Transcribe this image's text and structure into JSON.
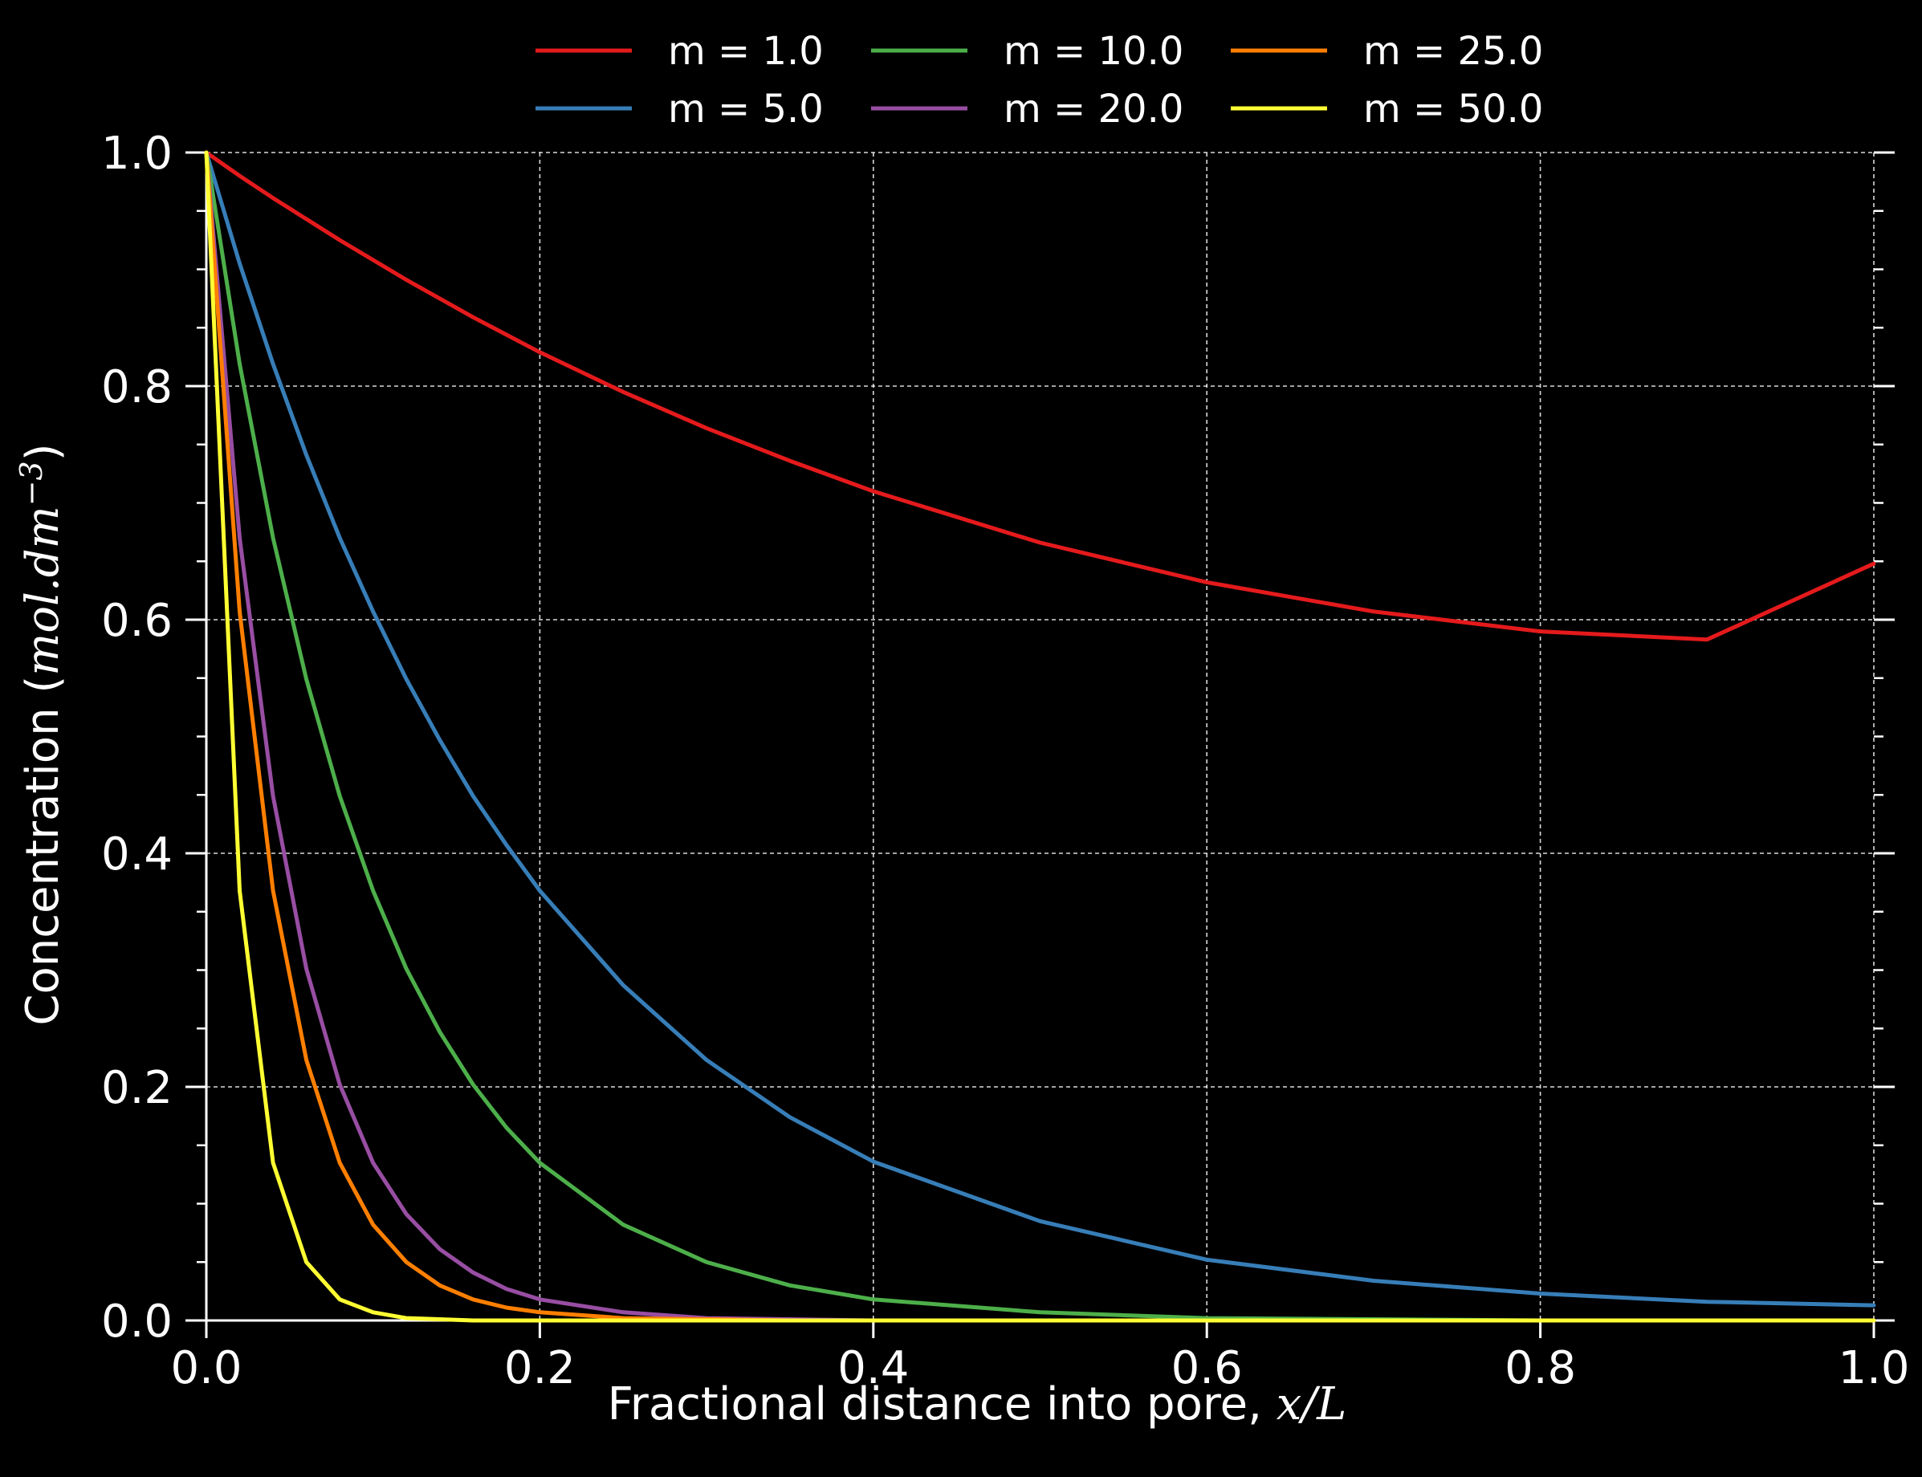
{
  "chart_data": {
    "type": "line",
    "xlabel_prefix": "Fractional distance into pore, ",
    "xlabel_math": "x/L",
    "ylabel_prefix": "Concentration (",
    "ylabel_math": "mol.dm",
    "ylabel_exp": "−3",
    "ylabel_suffix": ")",
    "xlim": [
      0.0,
      1.0
    ],
    "ylim": [
      0.0,
      1.0
    ],
    "xticks": [
      "0.0",
      "0.2",
      "0.4",
      "0.6",
      "0.8",
      "1.0"
    ],
    "yticks": [
      "0.0",
      "0.2",
      "0.4",
      "0.6",
      "0.8",
      "1.0"
    ],
    "grid": true,
    "legend_position": "top",
    "background": "#000000",
    "x": [
      0.0,
      0.02,
      0.04,
      0.06,
      0.08,
      0.1,
      0.12,
      0.14,
      0.16,
      0.18,
      0.2,
      0.25,
      0.3,
      0.35,
      0.4,
      0.5,
      0.6,
      0.7,
      0.8,
      0.9,
      1.0
    ],
    "series": [
      {
        "name": "m = 1.0",
        "color": "#e41a1c",
        "values": [
          1.0,
          0.98,
          0.961,
          0.943,
          0.925,
          0.908,
          0.891,
          0.875,
          0.859,
          0.844,
          0.829,
          0.795,
          0.764,
          0.736,
          0.71,
          0.666,
          0.632,
          0.607,
          0.59,
          0.583,
          0.648
        ]
      },
      {
        "name": "m = 5.0",
        "color": "#377eb8",
        "values": [
          1.0,
          0.905,
          0.819,
          0.741,
          0.67,
          0.607,
          0.549,
          0.497,
          0.449,
          0.407,
          0.368,
          0.287,
          0.223,
          0.174,
          0.136,
          0.085,
          0.052,
          0.034,
          0.023,
          0.016,
          0.013
        ]
      },
      {
        "name": "m = 10.0",
        "color": "#4daf4a",
        "values": [
          1.0,
          0.819,
          0.67,
          0.549,
          0.449,
          0.368,
          0.301,
          0.247,
          0.202,
          0.165,
          0.135,
          0.082,
          0.05,
          0.03,
          0.018,
          0.007,
          0.002,
          0.001,
          0.0,
          0.0,
          0.0
        ]
      },
      {
        "name": "m = 20.0",
        "color": "#984ea3",
        "values": [
          1.0,
          0.67,
          0.449,
          0.301,
          0.202,
          0.135,
          0.091,
          0.061,
          0.041,
          0.027,
          0.018,
          0.007,
          0.002,
          0.001,
          0.0,
          0.0,
          0.0,
          0.0,
          0.0,
          0.0,
          0.0
        ]
      },
      {
        "name": "m = 25.0",
        "color": "#ff7f00",
        "values": [
          1.0,
          0.607,
          0.368,
          0.223,
          0.135,
          0.082,
          0.05,
          0.03,
          0.018,
          0.011,
          0.007,
          0.002,
          0.001,
          0.0,
          0.0,
          0.0,
          0.0,
          0.0,
          0.0,
          0.0,
          0.0
        ]
      },
      {
        "name": "m = 50.0",
        "color": "#ffff33",
        "values": [
          1.0,
          0.368,
          0.135,
          0.05,
          0.018,
          0.007,
          0.002,
          0.001,
          0.0,
          0.0,
          0.0,
          0.0,
          0.0,
          0.0,
          0.0,
          0.0,
          0.0,
          0.0,
          0.0,
          0.0,
          0.0
        ]
      }
    ]
  }
}
